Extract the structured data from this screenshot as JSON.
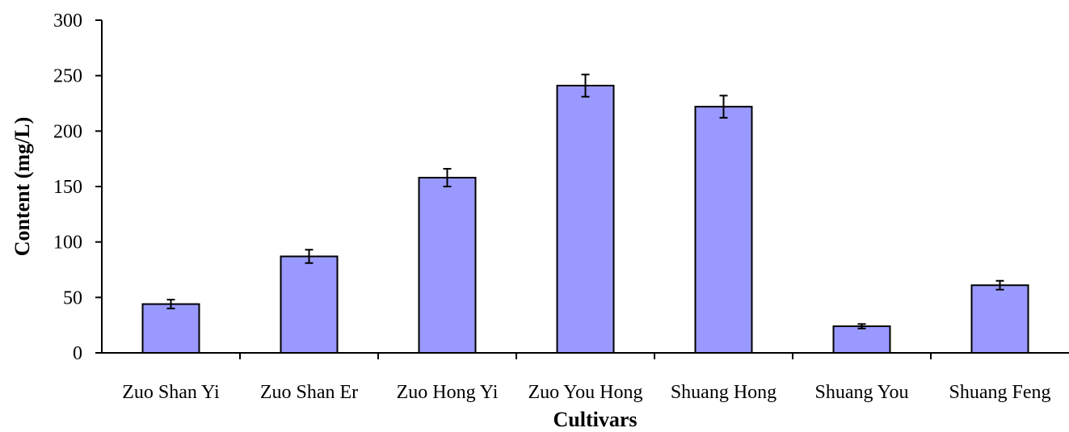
{
  "chart_data": {
    "type": "bar",
    "title": "",
    "xlabel": "Cultivars",
    "ylabel": "Content (mg/L)",
    "ylim": [
      0,
      300
    ],
    "yticks": [
      0,
      50,
      100,
      150,
      200,
      250,
      300
    ],
    "categories": [
      "Zuo Shan Yi",
      "Zuo Shan Er",
      "Zuo Hong Yi",
      "Zuo You Hong",
      "Shuang Hong",
      "Shuang You",
      "Shuang Feng"
    ],
    "values": [
      44,
      87,
      158,
      241,
      222,
      24,
      61
    ],
    "errors": [
      4,
      6,
      8,
      10,
      10,
      2,
      4
    ],
    "bar_color": "#9999ff",
    "grid": false,
    "legend": "none"
  }
}
